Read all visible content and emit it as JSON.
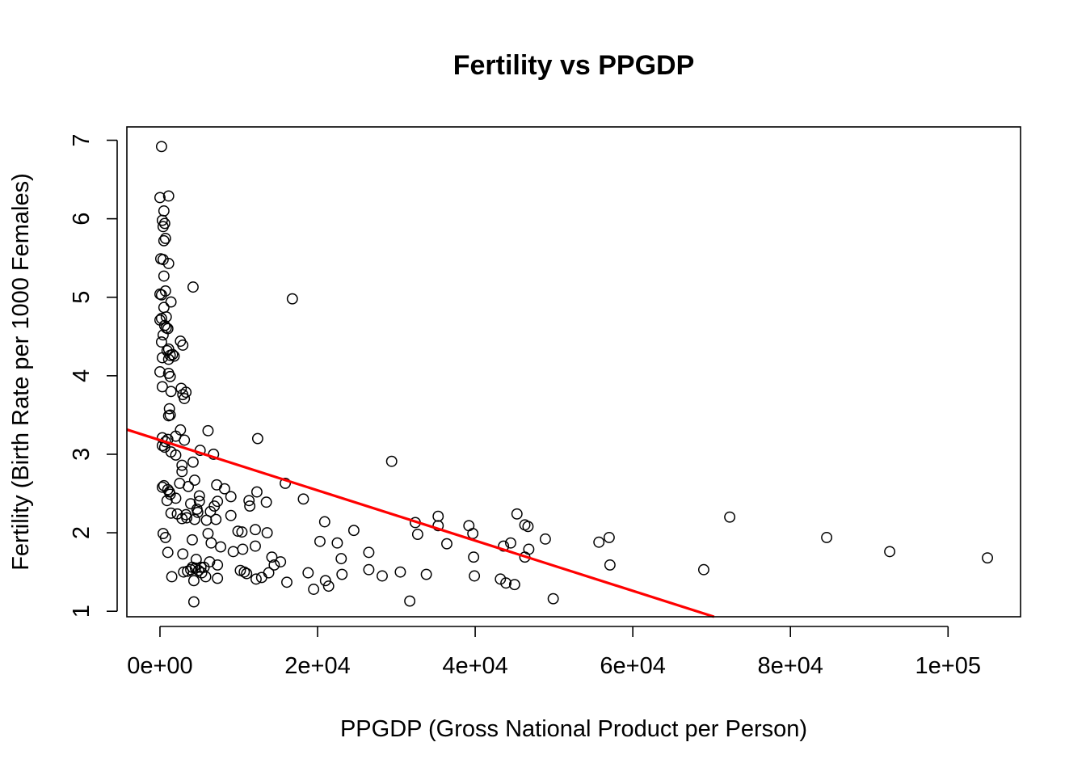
{
  "chart_data": {
    "type": "scatter",
    "title": "Fertility vs PPGDP",
    "xlabel": "PPGDP (Gross National Product per Person)",
    "ylabel": "Fertility (Birth Rate per 1000 Females)",
    "xlim": [
      -4200,
      109200
    ],
    "ylim": [
      0.93,
      7.17
    ],
    "x_ticks": [
      {
        "value": 0,
        "label": "0e+00"
      },
      {
        "value": 20000,
        "label": "2e+04"
      },
      {
        "value": 40000,
        "label": "4e+04"
      },
      {
        "value": 60000,
        "label": "6e+04"
      },
      {
        "value": 80000,
        "label": "8e+04"
      },
      {
        "value": 100000,
        "label": "1e+05"
      }
    ],
    "y_ticks": [
      {
        "value": 1,
        "label": "1"
      },
      {
        "value": 2,
        "label": "2"
      },
      {
        "value": 3,
        "label": "3"
      },
      {
        "value": 4,
        "label": "4"
      },
      {
        "value": 5,
        "label": "5"
      },
      {
        "value": 6,
        "label": "6"
      },
      {
        "value": 7,
        "label": "7"
      }
    ],
    "regression_line": {
      "intercept": 3.18,
      "slope": -3.2e-05,
      "color": "#ff0000"
    },
    "point_style": {
      "shape": "open-circle",
      "color": "#000000"
    },
    "points": [
      [
        200,
        6.92
      ],
      [
        1100,
        6.29
      ],
      [
        0,
        6.27
      ],
      [
        500,
        6.1
      ],
      [
        300,
        5.98
      ],
      [
        600,
        5.94
      ],
      [
        400,
        5.9
      ],
      [
        700,
        5.75
      ],
      [
        500,
        5.72
      ],
      [
        100,
        5.49
      ],
      [
        400,
        5.48
      ],
      [
        1100,
        5.43
      ],
      [
        500,
        5.27
      ],
      [
        4200,
        5.13
      ],
      [
        700,
        5.08
      ],
      [
        0,
        5.04
      ],
      [
        200,
        5.03
      ],
      [
        16800,
        4.98
      ],
      [
        1400,
        4.94
      ],
      [
        500,
        4.87
      ],
      [
        800,
        4.75
      ],
      [
        200,
        4.73
      ],
      [
        0,
        4.71
      ],
      [
        600,
        4.64
      ],
      [
        800,
        4.61
      ],
      [
        1000,
        4.6
      ],
      [
        400,
        4.52
      ],
      [
        2600,
        4.44
      ],
      [
        200,
        4.43
      ],
      [
        2900,
        4.39
      ],
      [
        1100,
        4.34
      ],
      [
        900,
        4.32
      ],
      [
        1600,
        4.27
      ],
      [
        1800,
        4.25
      ],
      [
        1300,
        4.26
      ],
      [
        300,
        4.23
      ],
      [
        1100,
        4.21
      ],
      [
        0,
        4.05
      ],
      [
        1100,
        4.03
      ],
      [
        1300,
        3.99
      ],
      [
        300,
        3.86
      ],
      [
        2700,
        3.84
      ],
      [
        1400,
        3.8
      ],
      [
        3300,
        3.79
      ],
      [
        2900,
        3.76
      ],
      [
        3100,
        3.71
      ],
      [
        1200,
        3.58
      ],
      [
        1300,
        3.5
      ],
      [
        1100,
        3.49
      ],
      [
        2600,
        3.31
      ],
      [
        6100,
        3.3
      ],
      [
        12400,
        3.2
      ],
      [
        2000,
        3.23
      ],
      [
        300,
        3.21
      ],
      [
        1000,
        3.19
      ],
      [
        3100,
        3.18
      ],
      [
        700,
        3.16
      ],
      [
        300,
        3.11
      ],
      [
        600,
        3.09
      ],
      [
        5100,
        3.05
      ],
      [
        1400,
        3.03
      ],
      [
        6800,
        3.0
      ],
      [
        2000,
        2.99
      ],
      [
        29400,
        2.91
      ],
      [
        4200,
        2.9
      ],
      [
        2800,
        2.86
      ],
      [
        2800,
        2.78
      ],
      [
        4400,
        2.67
      ],
      [
        15900,
        2.63
      ],
      [
        500,
        2.6
      ],
      [
        2500,
        2.63
      ],
      [
        7200,
        2.61
      ],
      [
        300,
        2.58
      ],
      [
        3600,
        2.59
      ],
      [
        8200,
        2.56
      ],
      [
        1000,
        2.55
      ],
      [
        1200,
        2.52
      ],
      [
        12300,
        2.52
      ],
      [
        1300,
        2.49
      ],
      [
        5000,
        2.47
      ],
      [
        9000,
        2.46
      ],
      [
        18200,
        2.43
      ],
      [
        900,
        2.41
      ],
      [
        2000,
        2.44
      ],
      [
        5000,
        2.4
      ],
      [
        13500,
        2.39
      ],
      [
        11300,
        2.41
      ],
      [
        7300,
        2.4
      ],
      [
        6900,
        2.34
      ],
      [
        4700,
        2.3
      ],
      [
        11400,
        2.34
      ],
      [
        3900,
        2.37
      ],
      [
        6400,
        2.27
      ],
      [
        4800,
        2.26
      ],
      [
        1400,
        2.25
      ],
      [
        3300,
        2.23
      ],
      [
        2200,
        2.24
      ],
      [
        9000,
        2.22
      ],
      [
        4400,
        2.17
      ],
      [
        2800,
        2.18
      ],
      [
        35300,
        2.21
      ],
      [
        45300,
        2.24
      ],
      [
        72300,
        2.2
      ],
      [
        3400,
        2.19
      ],
      [
        5900,
        2.16
      ],
      [
        7100,
        2.17
      ],
      [
        20900,
        2.14
      ],
      [
        32400,
        2.13
      ],
      [
        39200,
        2.09
      ],
      [
        46300,
        2.1
      ],
      [
        46700,
        2.08
      ],
      [
        35300,
        2.09
      ],
      [
        12100,
        2.04
      ],
      [
        24600,
        2.03
      ],
      [
        9900,
        2.02
      ],
      [
        10400,
        2.01
      ],
      [
        13600,
        2.0
      ],
      [
        32700,
        1.98
      ],
      [
        39700,
        1.99
      ],
      [
        400,
        1.99
      ],
      [
        6100,
        1.99
      ],
      [
        700,
        1.94
      ],
      [
        4100,
        1.91
      ],
      [
        20300,
        1.89
      ],
      [
        57000,
        1.94
      ],
      [
        22500,
        1.87
      ],
      [
        44500,
        1.87
      ],
      [
        55700,
        1.88
      ],
      [
        84600,
        1.94
      ],
      [
        48900,
        1.92
      ],
      [
        36400,
        1.86
      ],
      [
        43600,
        1.83
      ],
      [
        6500,
        1.87
      ],
      [
        12100,
        1.83
      ],
      [
        7700,
        1.82
      ],
      [
        10500,
        1.79
      ],
      [
        46800,
        1.79
      ],
      [
        1000,
        1.75
      ],
      [
        26500,
        1.75
      ],
      [
        9300,
        1.76
      ],
      [
        92600,
        1.76
      ],
      [
        2900,
        1.73
      ],
      [
        14200,
        1.69
      ],
      [
        23000,
        1.67
      ],
      [
        46300,
        1.69
      ],
      [
        39800,
        1.69
      ],
      [
        4600,
        1.66
      ],
      [
        105000,
        1.68
      ],
      [
        15300,
        1.63
      ],
      [
        6300,
        1.63
      ],
      [
        7300,
        1.59
      ],
      [
        14500,
        1.59
      ],
      [
        5200,
        1.56
      ],
      [
        4500,
        1.55
      ],
      [
        3900,
        1.53
      ],
      [
        4100,
        1.56
      ],
      [
        5600,
        1.56
      ],
      [
        4900,
        1.52
      ],
      [
        26500,
        1.53
      ],
      [
        10200,
        1.52
      ],
      [
        69000,
        1.53
      ],
      [
        57100,
        1.59
      ],
      [
        3500,
        1.51
      ],
      [
        10700,
        1.5
      ],
      [
        11000,
        1.48
      ],
      [
        3000,
        1.5
      ],
      [
        18800,
        1.49
      ],
      [
        13800,
        1.49
      ],
      [
        33800,
        1.47
      ],
      [
        30500,
        1.5
      ],
      [
        5300,
        1.49
      ],
      [
        23100,
        1.47
      ],
      [
        28200,
        1.45
      ],
      [
        1500,
        1.44
      ],
      [
        5800,
        1.44
      ],
      [
        12900,
        1.43
      ],
      [
        7300,
        1.42
      ],
      [
        39900,
        1.45
      ],
      [
        12200,
        1.41
      ],
      [
        4300,
        1.39
      ],
      [
        16100,
        1.37
      ],
      [
        21000,
        1.39
      ],
      [
        43200,
        1.41
      ],
      [
        43900,
        1.36
      ],
      [
        45000,
        1.34
      ],
      [
        21400,
        1.32
      ],
      [
        19500,
        1.28
      ],
      [
        4300,
        1.12
      ],
      [
        31700,
        1.13
      ],
      [
        49900,
        1.16
      ]
    ]
  }
}
